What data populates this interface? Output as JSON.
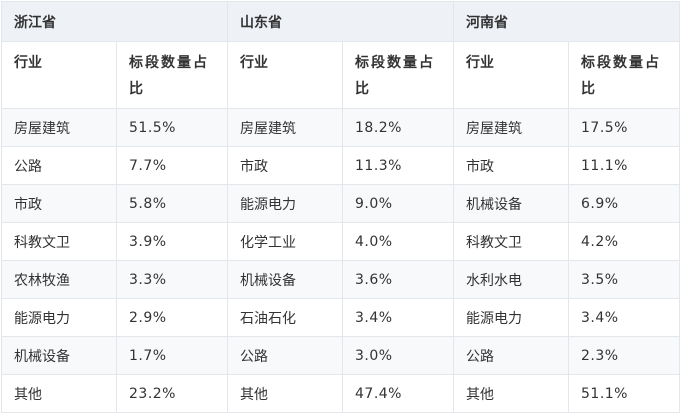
{
  "provinces": [
    "浙江省",
    "山东省",
    "河南省"
  ],
  "headers": {
    "industry": "行业",
    "share": "标段数量占比"
  },
  "rows": [
    [
      {
        "industry": "房屋建筑",
        "share": "51.5%"
      },
      {
        "industry": "房屋建筑",
        "share": "18.2%"
      },
      {
        "industry": "房屋建筑",
        "share": "17.5%"
      }
    ],
    [
      {
        "industry": "公路",
        "share": "7.7%"
      },
      {
        "industry": "市政",
        "share": "11.3%"
      },
      {
        "industry": "市政",
        "share": "11.1%"
      }
    ],
    [
      {
        "industry": "市政",
        "share": "5.8%"
      },
      {
        "industry": "能源电力",
        "share": "9.0%"
      },
      {
        "industry": "机械设备",
        "share": "6.9%"
      }
    ],
    [
      {
        "industry": "科教文卫",
        "share": "3.9%"
      },
      {
        "industry": "化学工业",
        "share": "4.0%"
      },
      {
        "industry": "科教文卫",
        "share": "4.2%"
      }
    ],
    [
      {
        "industry": "农林牧渔",
        "share": "3.3%"
      },
      {
        "industry": "机械设备",
        "share": "3.6%"
      },
      {
        "industry": "水利水电",
        "share": "3.5%"
      }
    ],
    [
      {
        "industry": "能源电力",
        "share": "2.9%"
      },
      {
        "industry": "石油石化",
        "share": "3.4%"
      },
      {
        "industry": "能源电力",
        "share": "3.4%"
      }
    ],
    [
      {
        "industry": "机械设备",
        "share": "1.7%"
      },
      {
        "industry": "公路",
        "share": "3.0%"
      },
      {
        "industry": "公路",
        "share": "2.3%"
      }
    ],
    [
      {
        "industry": "其他",
        "share": "23.2%"
      },
      {
        "industry": "其他",
        "share": "47.4%"
      },
      {
        "industry": "其他",
        "share": "51.1%"
      }
    ]
  ]
}
